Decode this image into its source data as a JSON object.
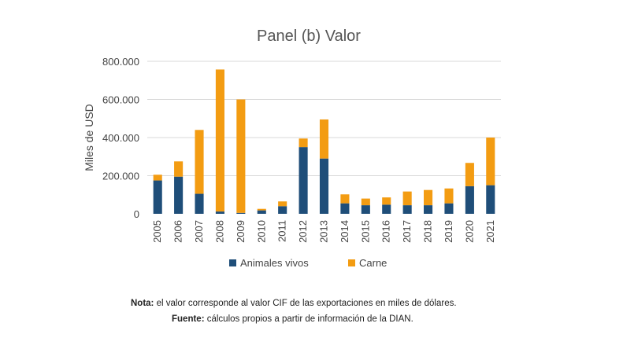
{
  "chart_data": {
    "type": "bar",
    "stacked": true,
    "title": "Panel (b) Valor",
    "xlabel": "",
    "ylabel": "Miles de USD",
    "ylim": [
      0,
      800000
    ],
    "yticks": [
      "0",
      "200.000",
      "400.000",
      "600.000",
      "800.000"
    ],
    "ytick_values": [
      0,
      200000,
      400000,
      600000,
      800000
    ],
    "grid": true,
    "legend_position": "bottom",
    "categories": [
      "2005",
      "2006",
      "2007",
      "2008",
      "2009",
      "2010",
      "2011",
      "2012",
      "2013",
      "2014",
      "2015",
      "2016",
      "2017",
      "2018",
      "2019",
      "2020",
      "2021"
    ],
    "series": [
      {
        "name": "Animales vivos",
        "color": "#1f4e79",
        "values": [
          175000,
          195000,
          105000,
          12000,
          5000,
          18000,
          40000,
          350000,
          290000,
          55000,
          45000,
          48000,
          45000,
          45000,
          55000,
          145000,
          150000
        ]
      },
      {
        "name": "Carne",
        "color": "#f39c12",
        "values": [
          30000,
          80000,
          335000,
          745000,
          595000,
          8000,
          25000,
          45000,
          205000,
          47000,
          35000,
          38000,
          72000,
          80000,
          78000,
          122000,
          250000
        ]
      }
    ]
  },
  "notes": {
    "nota_label": "Nota:",
    "nota_text": " el valor corresponde al valor CIF de las exportaciones en miles de dólares.",
    "fuente_label": "Fuente:",
    "fuente_text": " cálculos propios a partir de información de la DIAN."
  }
}
